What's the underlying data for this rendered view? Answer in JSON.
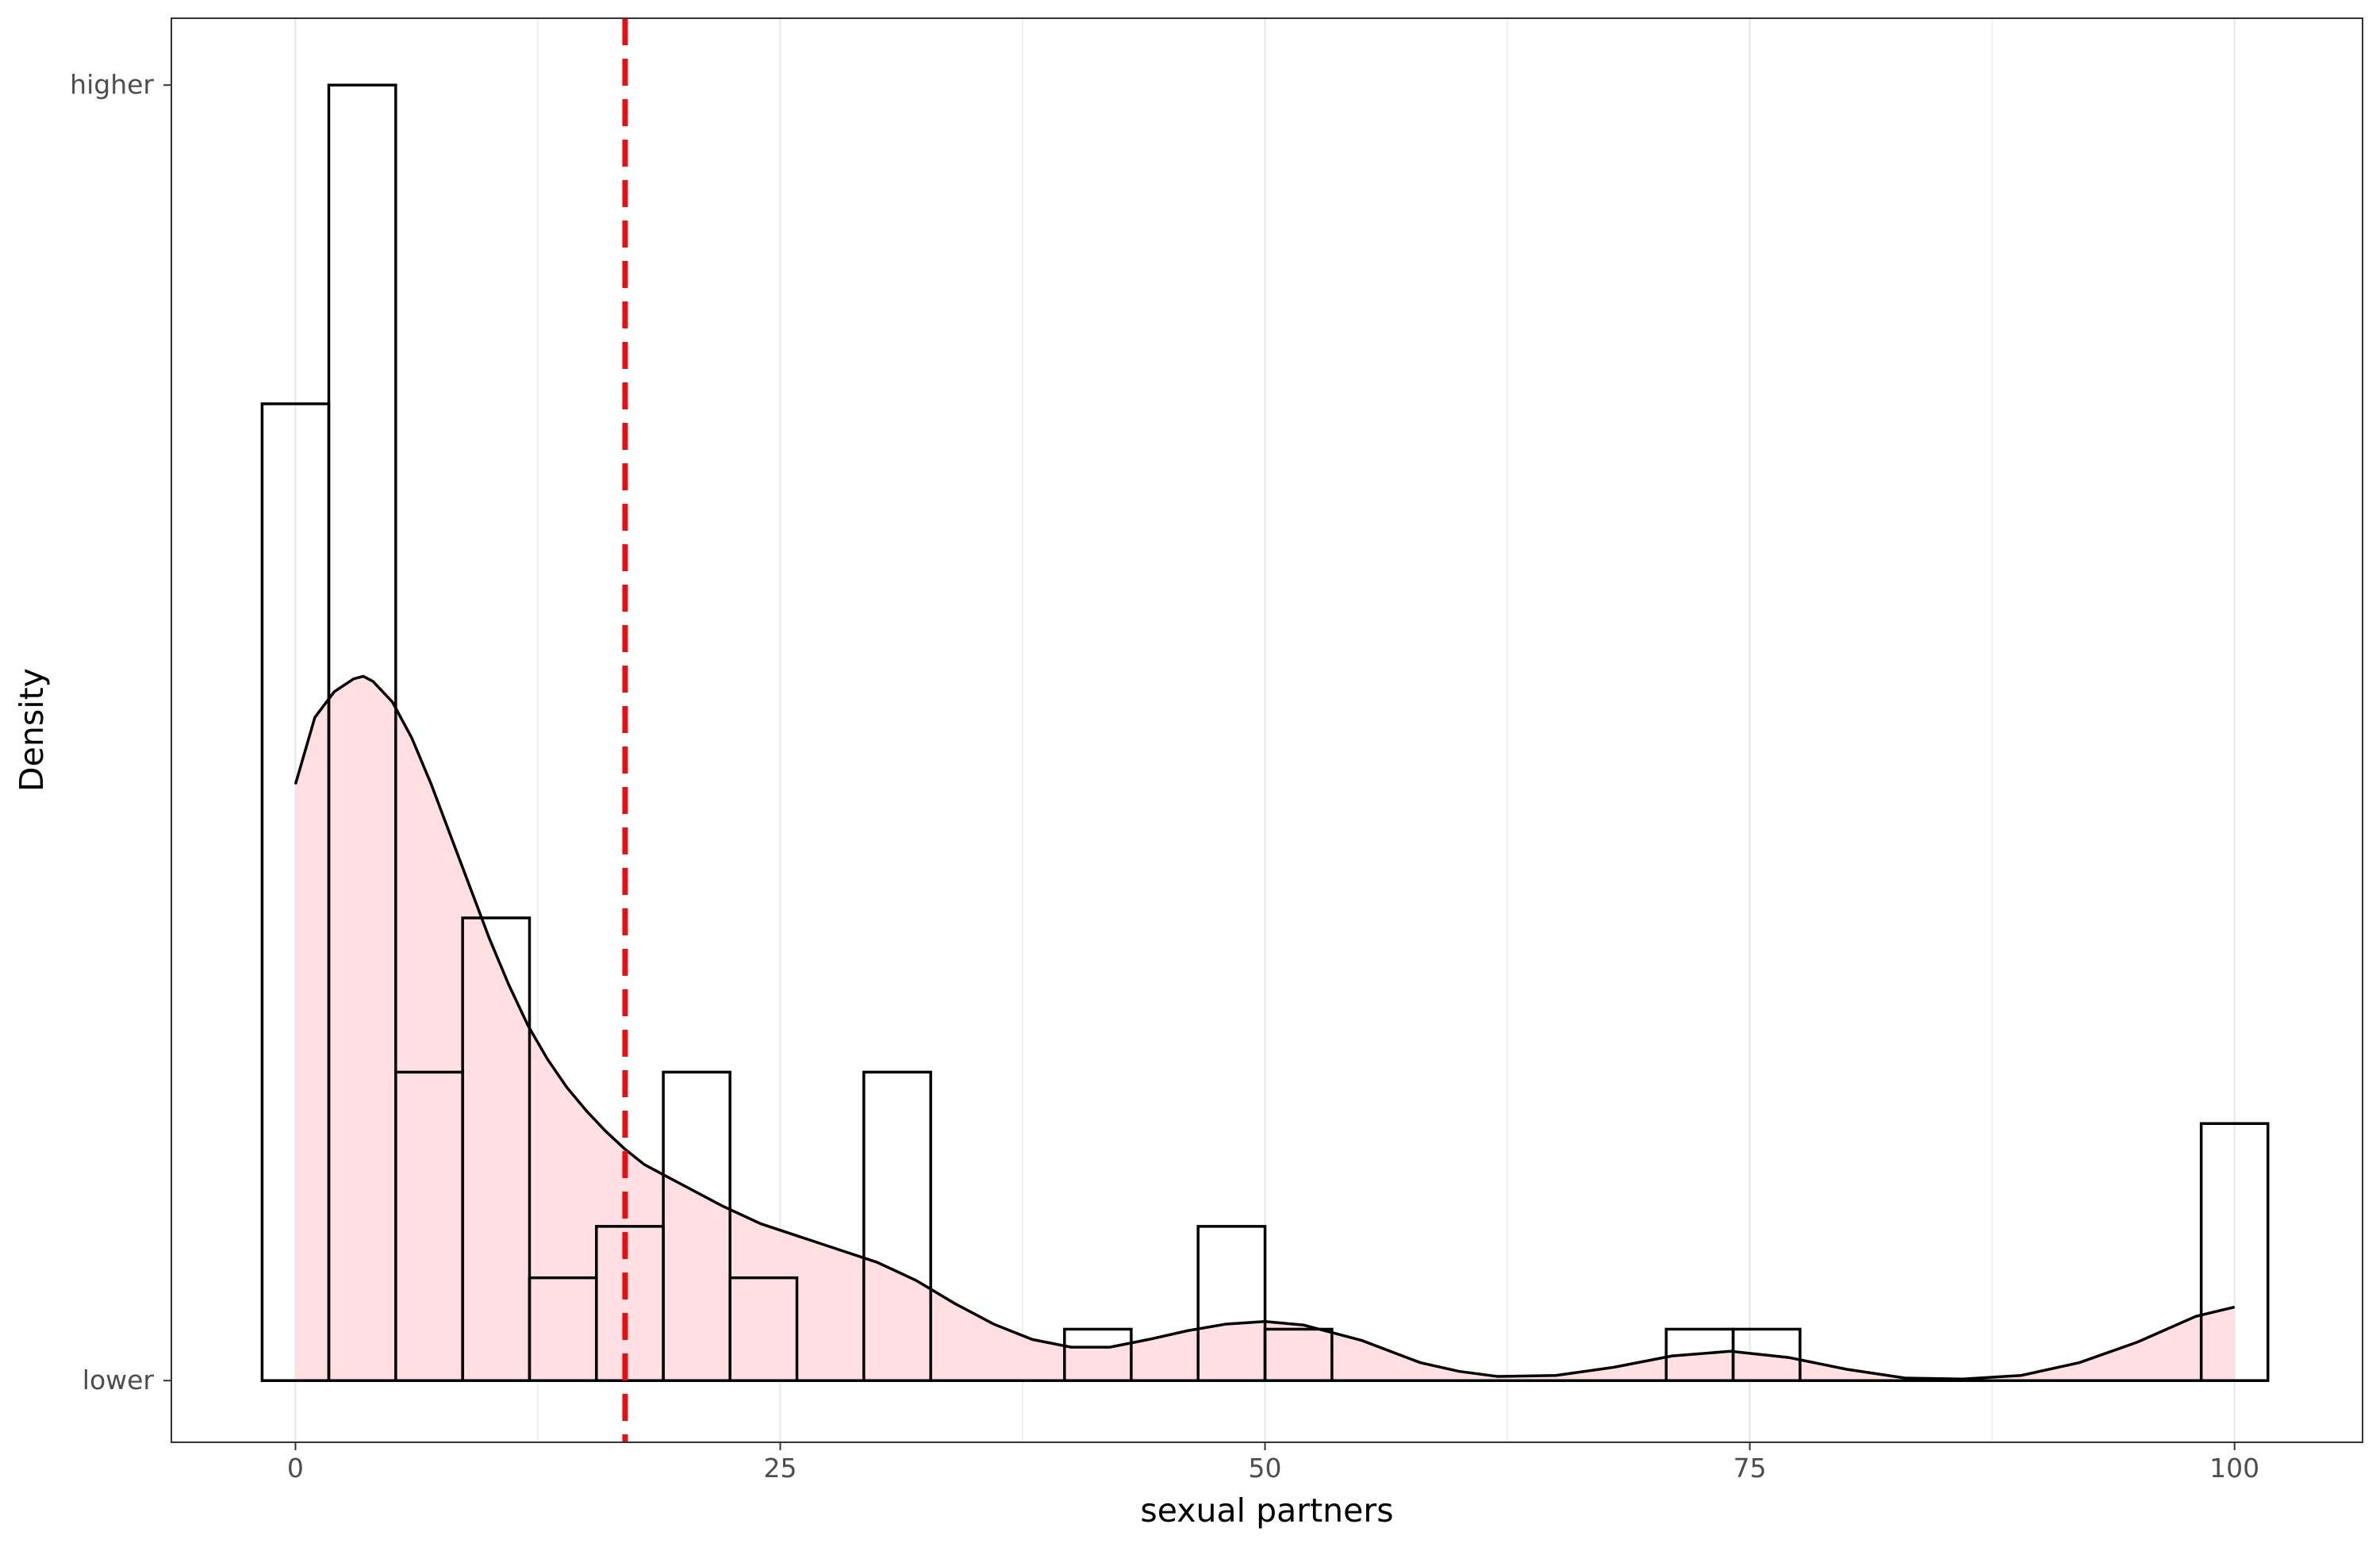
{
  "chart_data": {
    "type": "histogram",
    "xlabel": "sexual partners",
    "ylabel": "Density",
    "xlim": [
      -6.4,
      106.6
    ],
    "ylim": [
      -1.2,
      26.5
    ],
    "x_ticks": [
      0,
      25,
      50,
      75,
      100
    ],
    "x_tick_labels": [
      "0",
      "25",
      "50",
      "75",
      "100"
    ],
    "y_tick_labels": [
      {
        "label": "higher",
        "value": 25.2
      },
      {
        "label": "lower",
        "value": 0
      }
    ],
    "grid": "vertical",
    "bins": {
      "width": 3.45,
      "counts": [
        {
          "x0": -1.72,
          "x1": 1.72,
          "count": 19
        },
        {
          "x0": 1.72,
          "x1": 5.17,
          "count": 25.2
        },
        {
          "x0": 5.17,
          "x1": 8.62,
          "count": 6
        },
        {
          "x0": 8.62,
          "x1": 12.07,
          "count": 9
        },
        {
          "x0": 12.07,
          "x1": 15.52,
          "count": 2
        },
        {
          "x0": 15.52,
          "x1": 18.97,
          "count": 3
        },
        {
          "x0": 18.97,
          "x1": 22.41,
          "count": 6
        },
        {
          "x0": 22.41,
          "x1": 25.86,
          "count": 2
        },
        {
          "x0": 29.31,
          "x1": 32.76,
          "count": 6
        },
        {
          "x0": 39.66,
          "x1": 43.1,
          "count": 1
        },
        {
          "x0": 46.55,
          "x1": 50.0,
          "count": 3
        },
        {
          "x0": 50.0,
          "x1": 53.45,
          "count": 1
        },
        {
          "x0": 70.69,
          "x1": 74.14,
          "count": 1
        },
        {
          "x0": 74.14,
          "x1": 77.59,
          "count": 1
        },
        {
          "x0": 98.28,
          "x1": 101.72,
          "count": 5
        }
      ]
    },
    "density_curve": {
      "x": [
        0,
        1,
        2,
        3,
        3.5,
        4,
        5,
        6,
        7,
        8,
        9,
        10,
        11,
        12,
        13,
        14,
        15,
        16,
        17,
        18,
        19,
        20,
        22,
        24,
        26,
        28,
        30,
        32,
        34,
        36,
        38,
        40,
        42,
        44,
        46,
        48,
        50,
        52,
        55,
        58,
        60,
        62,
        65,
        68,
        71,
        74,
        77,
        80,
        83,
        86,
        89,
        92,
        95,
        98,
        100
      ],
      "y": [
        11.6,
        12.9,
        13.4,
        13.65,
        13.7,
        13.6,
        13.2,
        12.5,
        11.6,
        10.6,
        9.6,
        8.6,
        7.7,
        6.9,
        6.25,
        5.7,
        5.25,
        4.85,
        4.5,
        4.2,
        4.0,
        3.8,
        3.4,
        3.05,
        2.8,
        2.55,
        2.3,
        1.95,
        1.5,
        1.1,
        0.8,
        0.65,
        0.65,
        0.8,
        0.97,
        1.1,
        1.15,
        1.08,
        0.78,
        0.35,
        0.18,
        0.08,
        0.1,
        0.26,
        0.48,
        0.57,
        0.45,
        0.22,
        0.05,
        0.03,
        0.1,
        0.35,
        0.75,
        1.25,
        1.43
      ]
    },
    "reference_line": {
      "x": 17,
      "style": "dashed"
    },
    "colors": {
      "bar_outline": "#000000",
      "bar_fill": "none",
      "density_fill": "#ffdfe1",
      "density_line": "#000000",
      "reference_line": "#e61010",
      "grid": "#ebebeb",
      "panel_border": "#333333"
    }
  }
}
